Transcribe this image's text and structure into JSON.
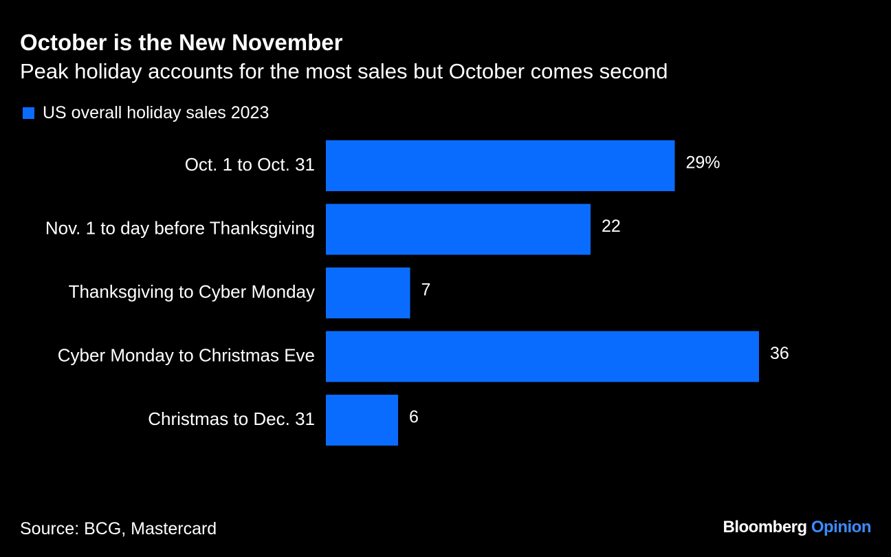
{
  "title": "October is the New November",
  "subtitle": "Peak holiday accounts for the most sales but October comes second",
  "source": "Source: BCG, Mastercard",
  "brand": {
    "name": "Bloomberg",
    "product": "Opinion"
  },
  "colors": {
    "background": "#000000",
    "bar": "#0A6CFF",
    "text": "#FFFFFF",
    "brand_accent": "#3D8BFF"
  },
  "chart_data": {
    "type": "bar",
    "orientation": "horizontal",
    "categories": [
      "Oct. 1 to Oct. 31",
      "Nov. 1 to day before Thanksgiving",
      "Thanksgiving to Cyber Monday",
      "Cyber Monday to Christmas Eve",
      "Christmas to Dec. 31"
    ],
    "series": [
      {
        "name": "US overall holiday sales 2023",
        "values": [
          29,
          22,
          7,
          36,
          6
        ]
      }
    ],
    "data_labels": [
      "29%",
      "22",
      "7",
      "36",
      "6"
    ],
    "unit": "%",
    "xlim": [
      0,
      36
    ],
    "grid": false,
    "axis_visible": false,
    "legend_position": "top-left"
  }
}
